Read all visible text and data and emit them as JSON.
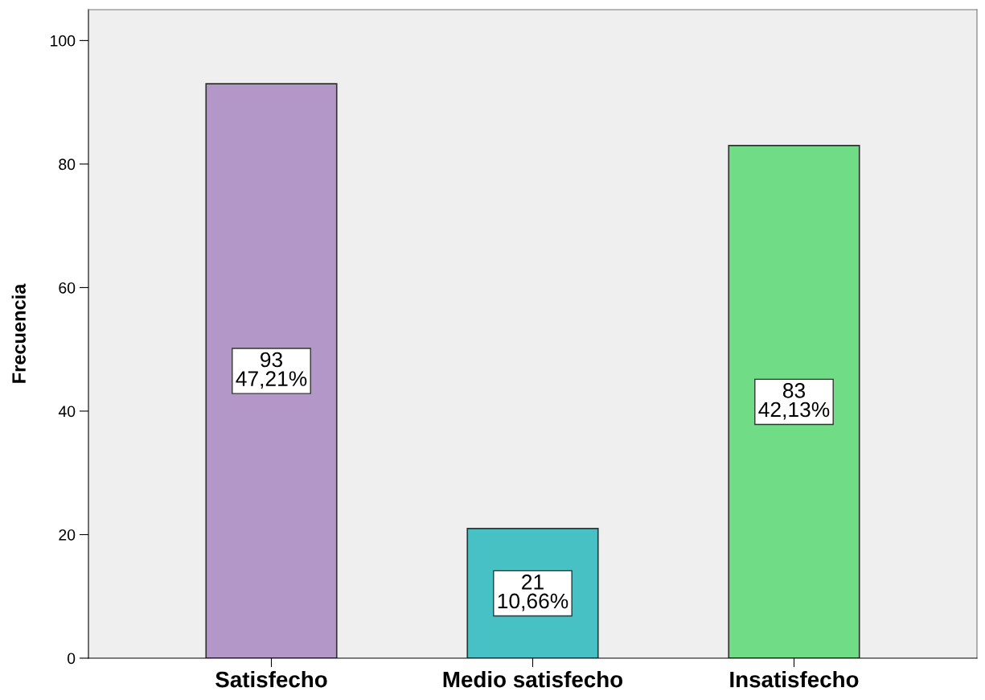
{
  "chart_data": {
    "type": "bar",
    "ylabel": "Frecuencia",
    "categories": [
      "Satisfecho",
      "Medio satisfecho",
      "Insatisfecho"
    ],
    "values": [
      93,
      21,
      83
    ],
    "colors": [
      "#b497c9",
      "#48c1c4",
      "#70dd86"
    ],
    "value_labels": [
      "93\n47,21%",
      "21\n10,66%",
      "83\n42,13%"
    ],
    "ylim": [
      0,
      105
    ],
    "yticks": [
      0,
      20,
      40,
      60,
      80,
      100
    ],
    "grid": false,
    "legend": false
  }
}
